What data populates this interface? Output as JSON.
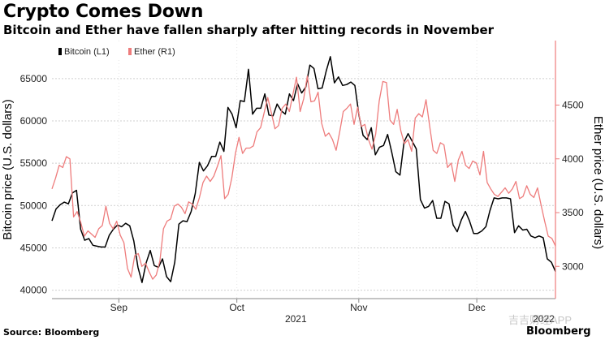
{
  "title": "Crypto Comes Down",
  "subtitle": "Bitcoin and Ether have fallen sharply after hitting records in November",
  "source": "Source: Bloomberg",
  "brand": "Bloomberg",
  "watermark": "吉吉财经APP",
  "chart_data": {
    "type": "line",
    "title": "Crypto Comes Down",
    "subtitle": "Bitcoin and Ether have fallen sharply after hitting records in November",
    "x_ticks": [
      {
        "label": "Sep",
        "day": 17
      },
      {
        "label": "Oct",
        "day": 47
      },
      {
        "label": "Nov",
        "day": 78
      },
      {
        "label": "Dec",
        "day": 108
      }
    ],
    "year_labels": [
      {
        "label": "2021",
        "day": 62
      },
      {
        "label": "2022",
        "day": 125
      }
    ],
    "xlim": [
      0,
      128
    ],
    "left_axis": {
      "label": "Bitcoin price (U.S. dollars)",
      "ylim": [
        39000,
        69500
      ],
      "ticks": [
        40000,
        45000,
        50000,
        55000,
        60000,
        65000
      ]
    },
    "right_axis": {
      "label": "Ether price (U.S. dollars)",
      "ylim": [
        2700,
        5100
      ],
      "ticks": [
        3000,
        3500,
        4000,
        4500
      ]
    },
    "legend": {
      "position": "top-left",
      "entries": [
        "Bitcoin (L1)",
        "Ether (R1)"
      ]
    },
    "grid": "horizontal dashed",
    "series": [
      {
        "name": "Bitcoin (L1)",
        "axis": "left",
        "color": "#000000",
        "values": [
          48200,
          49600,
          50100,
          50400,
          50200,
          51500,
          51800,
          47200,
          45900,
          46100,
          45300,
          45200,
          45100,
          45100,
          46500,
          47200,
          47700,
          47500,
          47900,
          47600,
          45800,
          42700,
          40900,
          43200,
          44700,
          42900,
          42700,
          43700,
          41600,
          41000,
          43300,
          47800,
          48200,
          48100,
          49300,
          51400,
          55100,
          54100,
          54700,
          55800,
          55800,
          57500,
          56400,
          61600,
          60800,
          59200,
          62400,
          62300,
          66100,
          60800,
          61500,
          61500,
          63200,
          60700,
          60600,
          62000,
          61200,
          60800,
          63200,
          62400,
          64400,
          63300,
          64000,
          66600,
          66200,
          63800,
          63900,
          65900,
          67600,
          64500,
          65200,
          64200,
          64300,
          64600,
          64200,
          60700,
          58300,
          57800,
          59200,
          56000,
          56900,
          57100,
          58400,
          56300,
          54000,
          53600,
          57500,
          58500,
          57600,
          56700,
          50700,
          49700,
          49900,
          50600,
          48500,
          48500,
          50500,
          50200,
          47700,
          46900,
          48300,
          49300,
          48200,
          46700,
          46700,
          47000,
          47500,
          49400,
          50900,
          50800,
          50900,
          50900,
          50800,
          46800,
          47600,
          47100,
          47200,
          46400,
          46200,
          46400,
          46200,
          43700,
          43300,
          42200
        ]
      },
      {
        "name": "Ether (R1)",
        "axis": "right",
        "color": "#ee7c7c",
        "values": [
          3720,
          3820,
          3940,
          3920,
          4020,
          4000,
          3460,
          3510,
          3410,
          3280,
          3330,
          3300,
          3270,
          3350,
          3380,
          3560,
          3400,
          3350,
          3420,
          3290,
          3220,
          2980,
          2900,
          3100,
          3120,
          3000,
          3030,
          2950,
          2880,
          2920,
          3050,
          3350,
          3420,
          3440,
          3560,
          3580,
          3550,
          3490,
          3600,
          3580,
          3530,
          3640,
          3780,
          3840,
          3790,
          3840,
          3930,
          4030,
          3630,
          3670,
          3820,
          4050,
          4200,
          4050,
          4100,
          4100,
          4120,
          4250,
          4290,
          4430,
          4570,
          4430,
          4280,
          4310,
          4470,
          4510,
          4440,
          4600,
          4760,
          4440,
          4560,
          4770,
          4530,
          4540,
          4620,
          4330,
          4210,
          4240,
          4180,
          4080,
          4250,
          4440,
          4470,
          4510,
          4320,
          4480,
          4300,
          4320,
          4180,
          4090,
          4230,
          4540,
          4720,
          4710,
          4360,
          4320,
          4460,
          4260,
          4140,
          4180,
          4070,
          4380,
          4420,
          4390,
          4550,
          4310,
          4080,
          4050,
          4150,
          4130,
          3920,
          3960,
          3790,
          3990,
          4070,
          3940,
          3910,
          3980,
          3960,
          3850,
          4070,
          3780,
          3720,
          3670,
          3650,
          3690,
          3730,
          3680,
          3720,
          3790,
          3630,
          3650,
          3750,
          3670,
          3640,
          3730,
          3570,
          3420,
          3280,
          3260,
          3190
        ]
      }
    ]
  }
}
